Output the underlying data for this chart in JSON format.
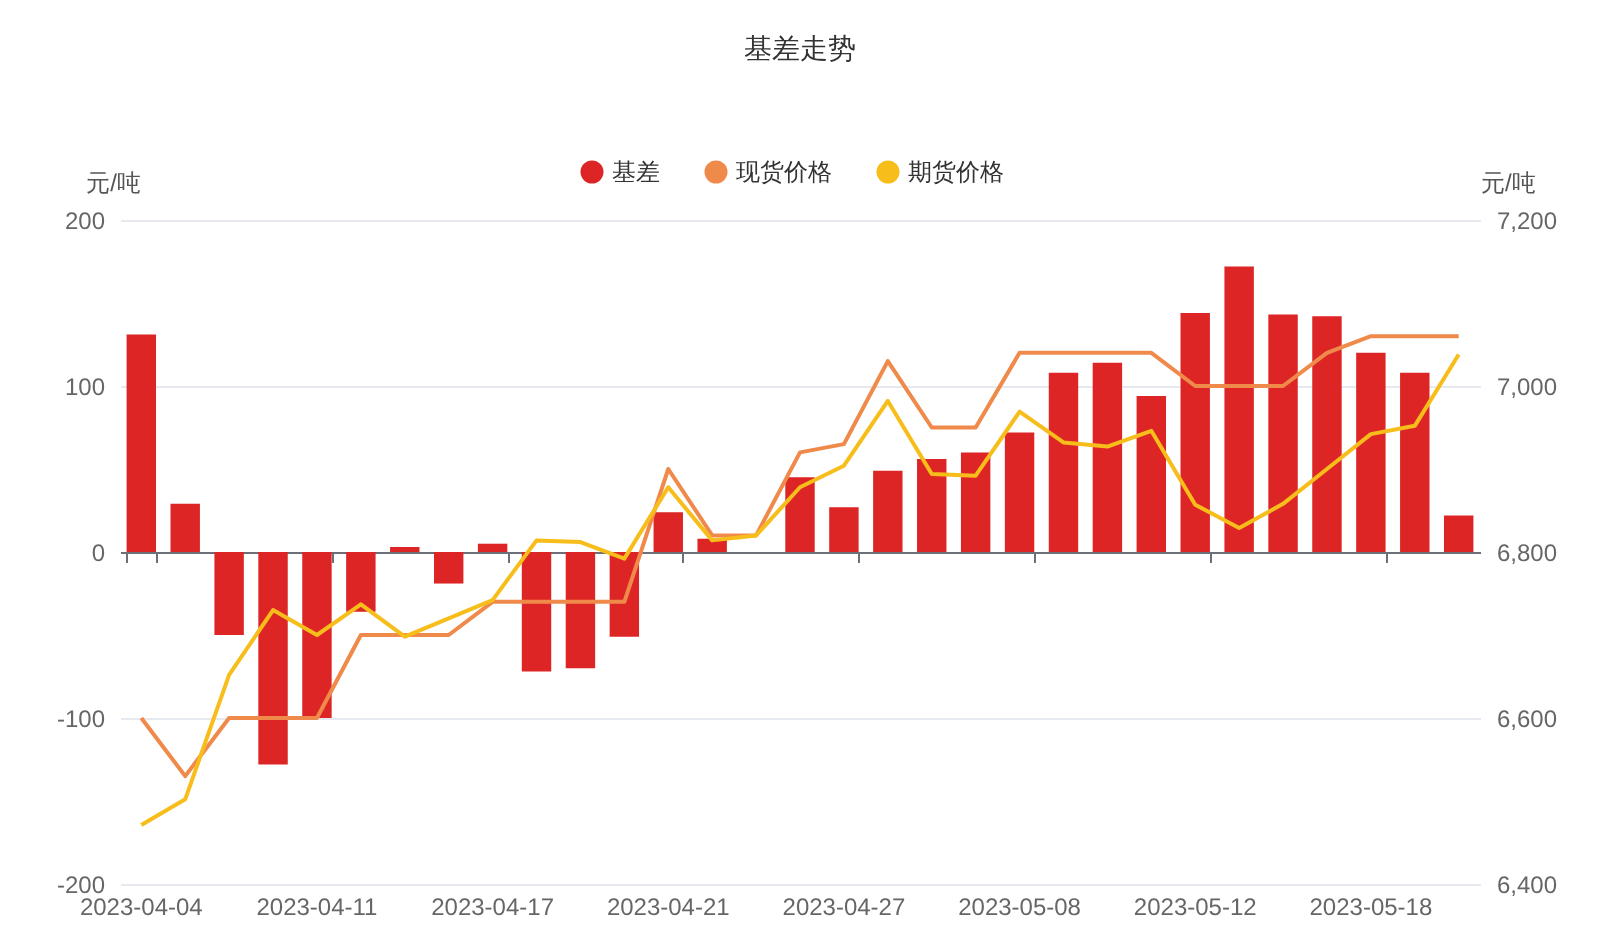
{
  "chart_data": {
    "type": "bar",
    "title": "基差走势",
    "ylabel": "元/吨",
    "y2label": "元/吨",
    "categories": [
      "2023-04-04",
      null,
      null,
      null,
      "2023-04-11",
      null,
      null,
      null,
      "2023-04-17",
      null,
      null,
      null,
      "2023-04-21",
      null,
      null,
      null,
      "2023-04-27",
      null,
      null,
      null,
      "2023-05-08",
      null,
      null,
      null,
      "2023-05-12",
      null,
      null,
      null,
      "2023-05-18",
      null,
      null
    ],
    "series": [
      {
        "name": "基差",
        "color": "#dd2526",
        "values": [
          131,
          29,
          -50,
          -128,
          -100,
          -36,
          3,
          -19,
          5,
          -72,
          -70,
          -51,
          24,
          8,
          0,
          45,
          27,
          49,
          56,
          60,
          72,
          108,
          114,
          94,
          144,
          172,
          143,
          142,
          120,
          108,
          22
        ]
      },
      {
        "name": "现货价格",
        "type": "line",
        "axis": "y2",
        "color": "#ef8a4a",
        "values": [
          6600,
          6530,
          6600,
          6600,
          6600,
          6700,
          6700,
          6700,
          6740,
          6740,
          6740,
          6740,
          6900,
          6820,
          6820,
          6920,
          6930,
          7030,
          6950,
          6950,
          7040,
          7040,
          7040,
          7040,
          7000,
          7000,
          7000,
          7040,
          7060,
          7060,
          7060
        ]
      },
      {
        "name": "期货价格",
        "type": "line",
        "axis": "y2",
        "color": "#f7bd1a",
        "values": [
          6471,
          6502,
          6652,
          6730,
          6700,
          6737,
          6698,
          6720,
          6742,
          6814,
          6812,
          6792,
          6878,
          6814,
          6820,
          6878,
          6904,
          6982,
          6894,
          6892,
          6969,
          6932,
          6927,
          6946,
          6857,
          6829,
          6858,
          6900,
          6942,
          6952,
          7038
        ]
      }
    ],
    "ylim": [
      -200,
      200
    ],
    "yticks": [
      -200,
      -100,
      0,
      100,
      200
    ],
    "y2lim": [
      6400,
      7200
    ],
    "y2ticks": [
      {
        "value": 6400,
        "label": "6,400"
      },
      {
        "value": 6600,
        "label": "6,600"
      },
      {
        "value": 6800,
        "label": "6,800"
      },
      {
        "value": 7000,
        "label": "7,000"
      },
      {
        "value": 7200,
        "label": "7,200"
      }
    ],
    "grid": "y",
    "legend": "top",
    "marker": "none",
    "line_style": "solid"
  }
}
